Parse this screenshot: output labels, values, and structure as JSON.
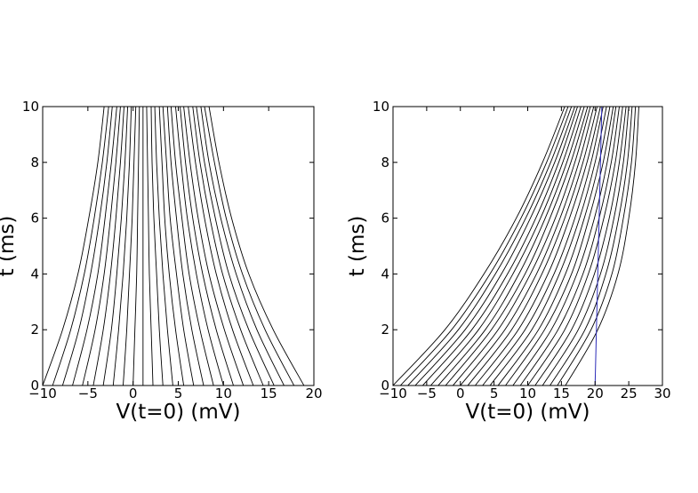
{
  "chart_data": [
    {
      "type": "line",
      "xlabel": "V(t=0) (mV)",
      "ylabel": "t (ms)",
      "xlim": [
        -10,
        20
      ],
      "ylim": [
        0,
        10
      ],
      "xticks": [
        -10,
        -5,
        0,
        5,
        10,
        15,
        20
      ],
      "yticks": [
        0,
        2,
        4,
        6,
        8,
        10
      ],
      "xtick_labels": [
        "−10",
        "−5",
        "0",
        "5",
        "10",
        "15",
        "20"
      ],
      "ytick_labels": [
        "0",
        "2",
        "4",
        "6",
        "8",
        "10"
      ],
      "grid": false,
      "threshold_line": {
        "x": [
          20,
          20
        ],
        "y": [
          0,
          10
        ],
        "color": "#2b2bb8"
      },
      "series": [
        {
          "values_at_t": [
            0,
            2,
            4,
            6,
            8,
            10
          ],
          "x": [
            -10,
            -7.8,
            -6.1,
            -4.9,
            -3.9,
            -3.2
          ]
        },
        {
          "values_at_t": [
            0,
            2,
            4,
            6,
            8,
            10
          ],
          "x": [
            -8.9,
            -6.9,
            -5.4,
            -4.3,
            -3.4,
            -2.7
          ]
        },
        {
          "values_at_t": [
            0,
            2,
            4,
            6,
            8,
            10
          ],
          "x": [
            -7.8,
            -6.0,
            -4.7,
            -3.7,
            -2.9,
            -2.3
          ]
        },
        {
          "values_at_t": [
            0,
            2,
            4,
            6,
            8,
            10
          ],
          "x": [
            -6.7,
            -5.1,
            -3.9,
            -3.1,
            -2.4,
            -1.8
          ]
        },
        {
          "values_at_t": [
            0,
            2,
            4,
            6,
            8,
            10
          ],
          "x": [
            -5.6,
            -4.2,
            -3.2,
            -2.5,
            -1.9,
            -1.4
          ]
        },
        {
          "values_at_t": [
            0,
            2,
            4,
            6,
            8,
            10
          ],
          "x": [
            -4.4,
            -3.3,
            -2.5,
            -1.9,
            -1.4,
            -1.0
          ]
        },
        {
          "values_at_t": [
            0,
            2,
            4,
            6,
            8,
            10
          ],
          "x": [
            -3.3,
            -2.4,
            -1.8,
            -1.3,
            -0.9,
            -0.6
          ]
        },
        {
          "values_at_t": [
            0,
            2,
            4,
            6,
            8,
            10
          ],
          "x": [
            -2.2,
            -1.6,
            -1.1,
            -0.7,
            -0.4,
            -0.2
          ]
        },
        {
          "values_at_t": [
            0,
            2,
            4,
            6,
            8,
            10
          ],
          "x": [
            -1.1,
            -0.7,
            -0.4,
            -0.1,
            0.1,
            0.3
          ]
        },
        {
          "values_at_t": [
            0,
            2,
            4,
            6,
            8,
            10
          ],
          "x": [
            0.0,
            0.2,
            0.4,
            0.5,
            0.6,
            0.7
          ]
        },
        {
          "values_at_t": [
            0,
            2,
            4,
            6,
            8,
            10
          ],
          "x": [
            1.1,
            1.1,
            1.1,
            1.1,
            1.1,
            1.1
          ]
        },
        {
          "values_at_t": [
            0,
            2,
            4,
            6,
            8,
            10
          ],
          "x": [
            2.2,
            2.0,
            1.8,
            1.7,
            1.6,
            1.5
          ]
        },
        {
          "values_at_t": [
            0,
            2,
            4,
            6,
            8,
            10
          ],
          "x": [
            3.3,
            2.9,
            2.6,
            2.3,
            2.1,
            2.0
          ]
        },
        {
          "values_at_t": [
            0,
            2,
            4,
            6,
            8,
            10
          ],
          "x": [
            4.4,
            3.8,
            3.3,
            2.9,
            2.6,
            2.4
          ]
        },
        {
          "values_at_t": [
            0,
            2,
            4,
            6,
            8,
            10
          ],
          "x": [
            5.6,
            4.7,
            4.0,
            3.5,
            3.2,
            2.9
          ]
        },
        {
          "values_at_t": [
            0,
            2,
            4,
            6,
            8,
            10
          ],
          "x": [
            6.7,
            5.6,
            4.8,
            4.1,
            3.7,
            3.3
          ]
        },
        {
          "values_at_t": [
            0,
            2,
            4,
            6,
            8,
            10
          ],
          "x": [
            7.8,
            6.5,
            5.5,
            4.8,
            4.2,
            3.8
          ]
        },
        {
          "values_at_t": [
            0,
            2,
            4,
            6,
            8,
            10
          ],
          "x": [
            8.9,
            7.4,
            6.2,
            5.4,
            4.7,
            4.2
          ]
        },
        {
          "values_at_t": [
            0,
            2,
            4,
            6,
            8,
            10
          ],
          "x": [
            10.0,
            8.3,
            7.0,
            6.0,
            5.3,
            4.7
          ]
        },
        {
          "values_at_t": [
            0,
            2,
            4,
            6,
            8,
            10
          ],
          "x": [
            11.1,
            9.2,
            7.7,
            6.6,
            5.8,
            5.2
          ]
        },
        {
          "values_at_t": [
            0,
            2,
            4,
            6,
            8,
            10
          ],
          "x": [
            12.2,
            10.1,
            8.4,
            7.2,
            6.3,
            5.6
          ]
        },
        {
          "values_at_t": [
            0,
            2,
            4,
            6,
            8,
            10
          ],
          "x": [
            13.3,
            11.0,
            9.2,
            7.9,
            6.9,
            6.1
          ]
        },
        {
          "values_at_t": [
            0,
            2,
            4,
            6,
            8,
            10
          ],
          "x": [
            14.4,
            11.9,
            9.9,
            8.5,
            7.4,
            6.6
          ]
        },
        {
          "values_at_t": [
            0,
            2,
            4,
            6,
            8,
            10
          ],
          "x": [
            15.6,
            12.8,
            10.6,
            9.1,
            7.9,
            7.0
          ]
        },
        {
          "values_at_t": [
            0,
            2,
            4,
            6,
            8,
            10
          ],
          "x": [
            16.7,
            13.7,
            11.4,
            9.7,
            8.4,
            7.5
          ]
        },
        {
          "values_at_t": [
            0,
            2,
            4,
            6,
            8,
            10
          ],
          "x": [
            17.8,
            14.6,
            12.1,
            10.3,
            9.0,
            7.9
          ]
        },
        {
          "values_at_t": [
            0,
            2,
            4,
            6,
            8,
            10
          ],
          "x": [
            18.9,
            15.5,
            12.8,
            10.9,
            9.5,
            8.4
          ]
        }
      ]
    },
    {
      "type": "line",
      "xlabel": "V(t=0) (mV)",
      "ylabel": "t (ms)",
      "xlim": [
        -10,
        30
      ],
      "ylim": [
        0,
        10
      ],
      "xticks": [
        -10,
        -5,
        0,
        5,
        10,
        15,
        20,
        25,
        30
      ],
      "yticks": [
        0,
        2,
        4,
        6,
        8,
        10
      ],
      "xtick_labels": [
        "−10",
        "−5",
        "0",
        "5",
        "10",
        "15",
        "20",
        "25",
        "30"
      ],
      "ytick_labels": [
        "0",
        "2",
        "4",
        "6",
        "8",
        "10"
      ],
      "grid": false,
      "threshold_line": {
        "x": [
          20,
          21
        ],
        "y": [
          0,
          10
        ],
        "color": "#2b2bb8"
      },
      "series": [
        {
          "values_at_t": [
            0,
            2,
            4,
            6,
            8,
            10
          ],
          "x": [
            -10,
            -2.3,
            3.5,
            8.3,
            12.2,
            15.5
          ]
        },
        {
          "values_at_t": [
            0,
            2,
            4,
            6,
            8,
            10
          ],
          "x": [
            -8.9,
            -1.3,
            4.4,
            9.0,
            12.8,
            16.0
          ]
        },
        {
          "values_at_t": [
            0,
            2,
            4,
            6,
            8,
            10
          ],
          "x": [
            -7.8,
            -0.3,
            5.2,
            9.7,
            13.4,
            16.5
          ]
        },
        {
          "values_at_t": [
            0,
            2,
            4,
            6,
            8,
            10
          ],
          "x": [
            -6.7,
            0.7,
            6.1,
            10.4,
            14.0,
            17.0
          ]
        },
        {
          "values_at_t": [
            0,
            2,
            4,
            6,
            8,
            10
          ],
          "x": [
            -5.6,
            1.7,
            7.0,
            11.2,
            14.6,
            17.4
          ]
        },
        {
          "values_at_t": [
            0,
            2,
            4,
            6,
            8,
            10
          ],
          "x": [
            -4.4,
            2.7,
            7.8,
            11.9,
            15.2,
            17.9
          ]
        },
        {
          "values_at_t": [
            0,
            2,
            4,
            6,
            8,
            10
          ],
          "x": [
            -3.3,
            3.7,
            8.7,
            12.6,
            15.8,
            18.4
          ]
        },
        {
          "values_at_t": [
            0,
            2,
            4,
            6,
            8,
            10
          ],
          "x": [
            -2.2,
            4.6,
            9.6,
            13.3,
            16.4,
            18.9
          ]
        },
        {
          "values_at_t": [
            0,
            2,
            4,
            6,
            8,
            10
          ],
          "x": [
            -1.1,
            5.6,
            10.4,
            14.1,
            17.0,
            19.3
          ]
        },
        {
          "values_at_t": [
            0,
            2,
            4,
            6,
            8,
            10
          ],
          "x": [
            0.0,
            6.6,
            11.3,
            14.8,
            17.6,
            19.8
          ]
        },
        {
          "values_at_t": [
            0,
            2,
            4,
            6,
            8,
            10
          ],
          "x": [
            1.1,
            7.6,
            12.1,
            15.5,
            18.2,
            20.3
          ]
        },
        {
          "values_at_t": [
            0,
            2,
            4,
            6,
            8,
            10
          ],
          "x": [
            2.2,
            8.6,
            13.0,
            16.2,
            18.8,
            20.8
          ]
        },
        {
          "values_at_t": [
            0,
            2,
            4,
            6,
            8,
            10
          ],
          "x": [
            3.3,
            9.6,
            13.9,
            17.0,
            19.4,
            21.2
          ]
        },
        {
          "values_at_t": [
            0,
            2,
            4,
            6,
            8,
            10
          ],
          "x": [
            4.4,
            10.6,
            14.7,
            17.7,
            20.0,
            21.7
          ]
        },
        {
          "values_at_t": [
            0,
            2,
            4,
            6,
            8,
            10
          ],
          "x": [
            5.6,
            11.6,
            15.6,
            18.4,
            20.6,
            22.2
          ]
        },
        {
          "values_at_t": [
            0,
            2,
            4,
            6,
            8,
            10
          ],
          "x": [
            6.7,
            12.5,
            16.5,
            19.1,
            21.2,
            22.7
          ]
        },
        {
          "values_at_t": [
            0,
            2,
            4,
            6,
            8,
            10
          ],
          "x": [
            7.8,
            13.5,
            17.3,
            19.9,
            21.8,
            23.1
          ]
        },
        {
          "values_at_t": [
            0,
            2,
            4,
            6,
            8,
            10
          ],
          "x": [
            8.9,
            14.5,
            18.2,
            20.6,
            22.4,
            23.6
          ]
        },
        {
          "values_at_t": [
            0,
            2,
            4,
            6,
            8,
            10
          ],
          "x": [
            10.0,
            15.5,
            19.0,
            21.3,
            23.0,
            24.1
          ]
        },
        {
          "values_at_t": [
            0,
            2,
            4,
            6,
            8,
            10
          ],
          "x": [
            11.1,
            16.5,
            19.9,
            22.1,
            23.6,
            24.6
          ]
        },
        {
          "values_at_t": [
            0,
            2,
            4,
            6,
            8,
            10
          ],
          "x": [
            12.2,
            17.5,
            20.8,
            22.8,
            24.2,
            25.0
          ]
        },
        {
          "values_at_t": [
            0,
            2,
            4,
            6,
            8,
            10
          ],
          "x": [
            13.3,
            18.5,
            21.6,
            23.5,
            24.8,
            25.5
          ]
        },
        {
          "values_at_t": [
            0,
            2,
            4,
            6,
            8,
            10
          ],
          "x": [
            14.4,
            19.4,
            22.5,
            24.2,
            25.4,
            26.0
          ]
        },
        {
          "values_at_t": [
            0,
            2,
            4,
            6,
            8,
            10
          ],
          "x": [
            15.6,
            20.4,
            23.4,
            25.0,
            26.0,
            26.5
          ]
        }
      ]
    }
  ]
}
